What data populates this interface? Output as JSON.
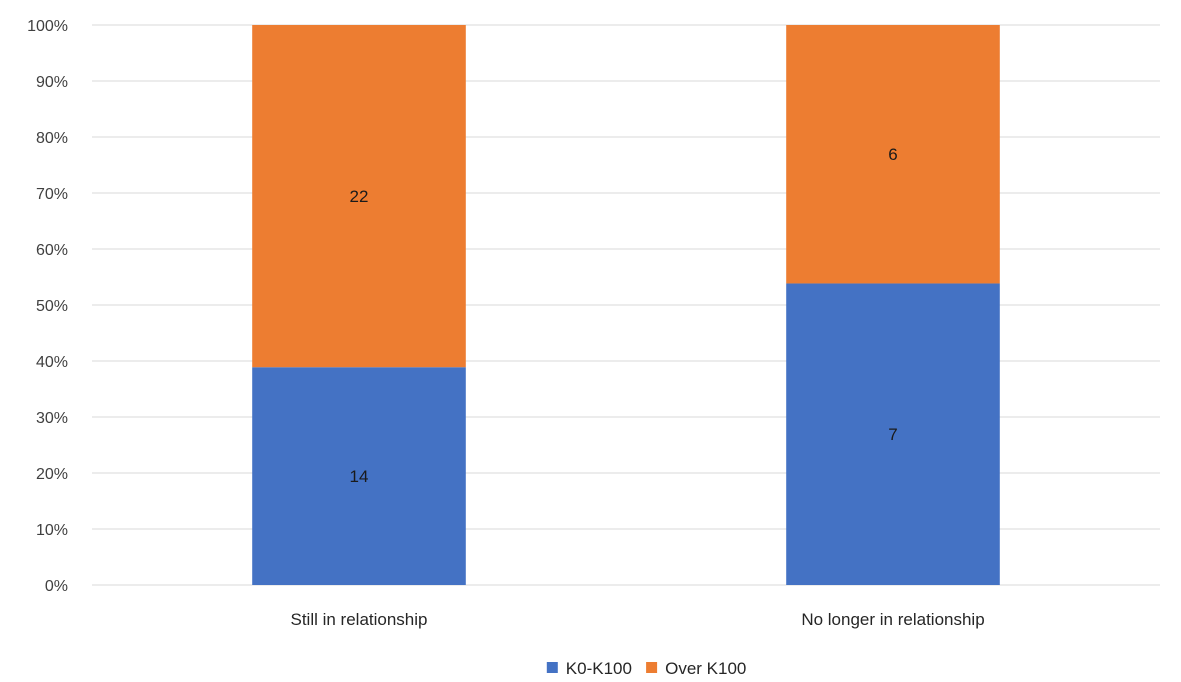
{
  "chart_data": {
    "type": "bar",
    "stacked": true,
    "normalized": true,
    "categories": [
      "Still in relationship",
      "No longer in relationship"
    ],
    "series": [
      {
        "name": "K0-K100",
        "values": [
          14,
          7
        ],
        "color": "#4472C4"
      },
      {
        "name": "Over K100",
        "values": [
          22,
          6
        ],
        "color": "#ED7D31"
      }
    ],
    "y_ticks": [
      "0%",
      "10%",
      "20%",
      "30%",
      "40%",
      "50%",
      "60%",
      "70%",
      "80%",
      "90%",
      "100%"
    ],
    "ylim": [
      0,
      100
    ],
    "grid": true,
    "legend_position": "bottom"
  }
}
